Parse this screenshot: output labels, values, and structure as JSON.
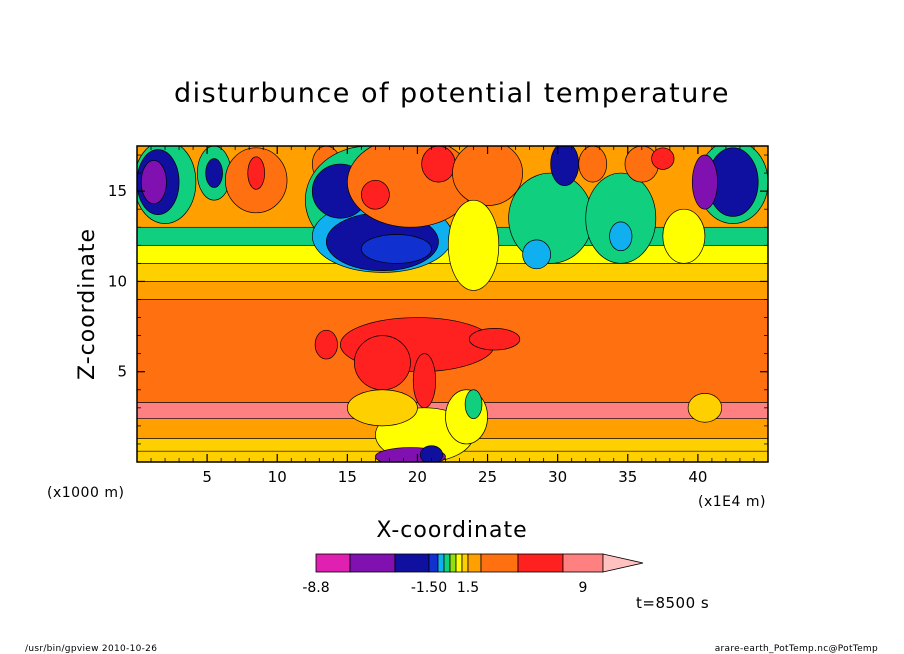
{
  "chart_data": {
    "type": "heatmap",
    "title": "disturbunce of potential temperature",
    "xlabel": "X-coordinate",
    "ylabel": "Z-coordinate",
    "x_unit_label": "(x1000 m)",
    "x_scale_label": "(x1E4 m)",
    "xlim": [
      0,
      45
    ],
    "ylim": [
      0,
      17.5
    ],
    "x_ticks": [
      5,
      10,
      15,
      20,
      25,
      30,
      35,
      40
    ],
    "y_ticks": [
      5,
      10,
      15
    ],
    "colorbar": {
      "labels": [
        {
          "value": -8.8,
          "text": "-8.8"
        },
        {
          "value": -1.5,
          "text": "-1.50"
        },
        {
          "value": 1.5,
          "text": "1.5"
        },
        {
          "value": 9,
          "text": "9"
        }
      ],
      "colors": [
        "#e020b0",
        "#8010b0",
        "#1010a0",
        "#1030d0",
        "#10b0f0",
        "#10d080",
        "#90e010",
        "#ffff00",
        "#ffd000",
        "#ffa000",
        "#ff7010",
        "#ff2020",
        "#ff8080",
        "#ffc0c0"
      ]
    },
    "annotation": "t=8500 s",
    "bands": [
      {
        "z": [
          0.0,
          0.6
        ],
        "color": "#ffd000"
      },
      {
        "z": [
          0.6,
          1.3
        ],
        "color": "#ffd000"
      },
      {
        "z": [
          1.3,
          2.4
        ],
        "color": "#ffa000"
      },
      {
        "z": [
          2.4,
          3.3
        ],
        "color": "#ff8080"
      },
      {
        "z": [
          3.3,
          9.0
        ],
        "color": "#ff7010"
      },
      {
        "z": [
          9.0,
          10.0
        ],
        "color": "#ffa000"
      },
      {
        "z": [
          10.0,
          11.0
        ],
        "color": "#ffd000"
      },
      {
        "z": [
          11.0,
          12.0
        ],
        "color": "#ffff00"
      },
      {
        "z": [
          12.0,
          13.0
        ],
        "color": "#10d080"
      },
      {
        "z": [
          13.0,
          17.5
        ],
        "color": "#ffa000"
      }
    ],
    "features": [
      {
        "x": 2.0,
        "z": 15.5,
        "rx": 2.2,
        "rz": 2.3,
        "color": "#10d080"
      },
      {
        "x": 1.5,
        "z": 15.5,
        "rx": 1.5,
        "rz": 1.8,
        "color": "#1010a0"
      },
      {
        "x": 1.2,
        "z": 15.5,
        "rx": 0.9,
        "rz": 1.2,
        "color": "#8010b0"
      },
      {
        "x": 5.5,
        "z": 16.0,
        "rx": 1.2,
        "rz": 1.5,
        "color": "#10d080"
      },
      {
        "x": 5.5,
        "z": 16.0,
        "rx": 0.6,
        "rz": 0.8,
        "color": "#1010a0"
      },
      {
        "x": 42.5,
        "z": 15.5,
        "rx": 2.5,
        "rz": 2.3,
        "color": "#10d080"
      },
      {
        "x": 42.5,
        "z": 15.5,
        "rx": 1.8,
        "rz": 1.9,
        "color": "#1010a0"
      },
      {
        "x": 40.5,
        "z": 15.5,
        "rx": 0.9,
        "rz": 1.5,
        "color": "#8010b0"
      },
      {
        "x": 8.5,
        "z": 15.6,
        "rx": 2.2,
        "rz": 1.8,
        "color": "#ff7010"
      },
      {
        "x": 8.5,
        "z": 16.0,
        "rx": 0.6,
        "rz": 0.9,
        "color": "#ff2020"
      },
      {
        "x": 13.5,
        "z": 16.5,
        "rx": 1.0,
        "rz": 1.0,
        "color": "#ff7010"
      },
      {
        "x": 16.5,
        "z": 14.5,
        "rx": 4.5,
        "rz": 3.0,
        "color": "#10d080"
      },
      {
        "x": 17.5,
        "z": 12.5,
        "rx": 5.0,
        "rz": 2.0,
        "color": "#10b0f0"
      },
      {
        "x": 17.5,
        "z": 12.2,
        "rx": 4.0,
        "rz": 1.6,
        "color": "#1010a0"
      },
      {
        "x": 18.5,
        "z": 11.8,
        "rx": 2.5,
        "rz": 0.8,
        "color": "#1030d0"
      },
      {
        "x": 14.5,
        "z": 15.0,
        "rx": 2.0,
        "rz": 1.5,
        "color": "#1010a0"
      },
      {
        "x": 19.5,
        "z": 15.5,
        "rx": 4.5,
        "rz": 2.5,
        "color": "#ff7010"
      },
      {
        "x": 17.0,
        "z": 14.8,
        "rx": 1.0,
        "rz": 0.8,
        "color": "#ff2020"
      },
      {
        "x": 21.5,
        "z": 16.5,
        "rx": 1.2,
        "rz": 1.0,
        "color": "#ff2020"
      },
      {
        "x": 25.0,
        "z": 16.0,
        "rx": 2.5,
        "rz": 1.8,
        "color": "#ff7010"
      },
      {
        "x": 29.5,
        "z": 13.5,
        "rx": 3.0,
        "rz": 2.5,
        "color": "#10d080"
      },
      {
        "x": 28.5,
        "z": 11.5,
        "rx": 1.0,
        "rz": 0.8,
        "color": "#10b0f0"
      },
      {
        "x": 30.5,
        "z": 16.5,
        "rx": 1.0,
        "rz": 1.2,
        "color": "#1010a0"
      },
      {
        "x": 34.5,
        "z": 13.5,
        "rx": 2.5,
        "rz": 2.5,
        "color": "#10d080"
      },
      {
        "x": 34.5,
        "z": 12.5,
        "rx": 0.8,
        "rz": 0.8,
        "color": "#10b0f0"
      },
      {
        "x": 36.0,
        "z": 16.5,
        "rx": 1.2,
        "rz": 1.0,
        "color": "#ff7010"
      },
      {
        "x": 37.5,
        "z": 16.8,
        "rx": 0.8,
        "rz": 0.6,
        "color": "#ff2020"
      },
      {
        "x": 32.5,
        "z": 16.5,
        "rx": 1.0,
        "rz": 1.0,
        "color": "#ff7010"
      },
      {
        "x": 24.0,
        "z": 12.0,
        "rx": 1.8,
        "rz": 2.5,
        "color": "#ffff00"
      },
      {
        "x": 39.0,
        "z": 12.5,
        "rx": 1.5,
        "rz": 1.5,
        "color": "#ffff00"
      },
      {
        "x": 20.0,
        "z": 6.5,
        "rx": 5.5,
        "rz": 1.5,
        "color": "#ff2020"
      },
      {
        "x": 17.5,
        "z": 5.5,
        "rx": 2.0,
        "rz": 1.5,
        "color": "#ff2020"
      },
      {
        "x": 20.5,
        "z": 4.5,
        "rx": 0.8,
        "rz": 1.5,
        "color": "#ff2020"
      },
      {
        "x": 25.5,
        "z": 6.8,
        "rx": 1.8,
        "rz": 0.6,
        "color": "#ff2020"
      },
      {
        "x": 13.5,
        "z": 6.5,
        "rx": 0.8,
        "rz": 0.8,
        "color": "#ff2020"
      },
      {
        "x": 20.5,
        "z": 1.5,
        "rx": 3.5,
        "rz": 1.5,
        "color": "#ffff00"
      },
      {
        "x": 23.5,
        "z": 2.5,
        "rx": 1.5,
        "rz": 1.5,
        "color": "#ffff00"
      },
      {
        "x": 24.0,
        "z": 3.2,
        "rx": 0.6,
        "rz": 0.8,
        "color": "#10d080"
      },
      {
        "x": 17.5,
        "z": 3.0,
        "rx": 2.5,
        "rz": 1.0,
        "color": "#ffd000"
      },
      {
        "x": 19.5,
        "z": 0.3,
        "rx": 2.5,
        "rz": 0.5,
        "color": "#8010b0"
      },
      {
        "x": 21.0,
        "z": 0.4,
        "rx": 0.8,
        "rz": 0.5,
        "color": "#1010a0"
      },
      {
        "x": 40.5,
        "z": 3.0,
        "rx": 1.2,
        "rz": 0.8,
        "color": "#ffd000"
      }
    ]
  },
  "footer": {
    "left": "/usr/bin/gpview  2010-10-26",
    "right": "arare-earth_PotTemp.nc@PotTemp"
  }
}
